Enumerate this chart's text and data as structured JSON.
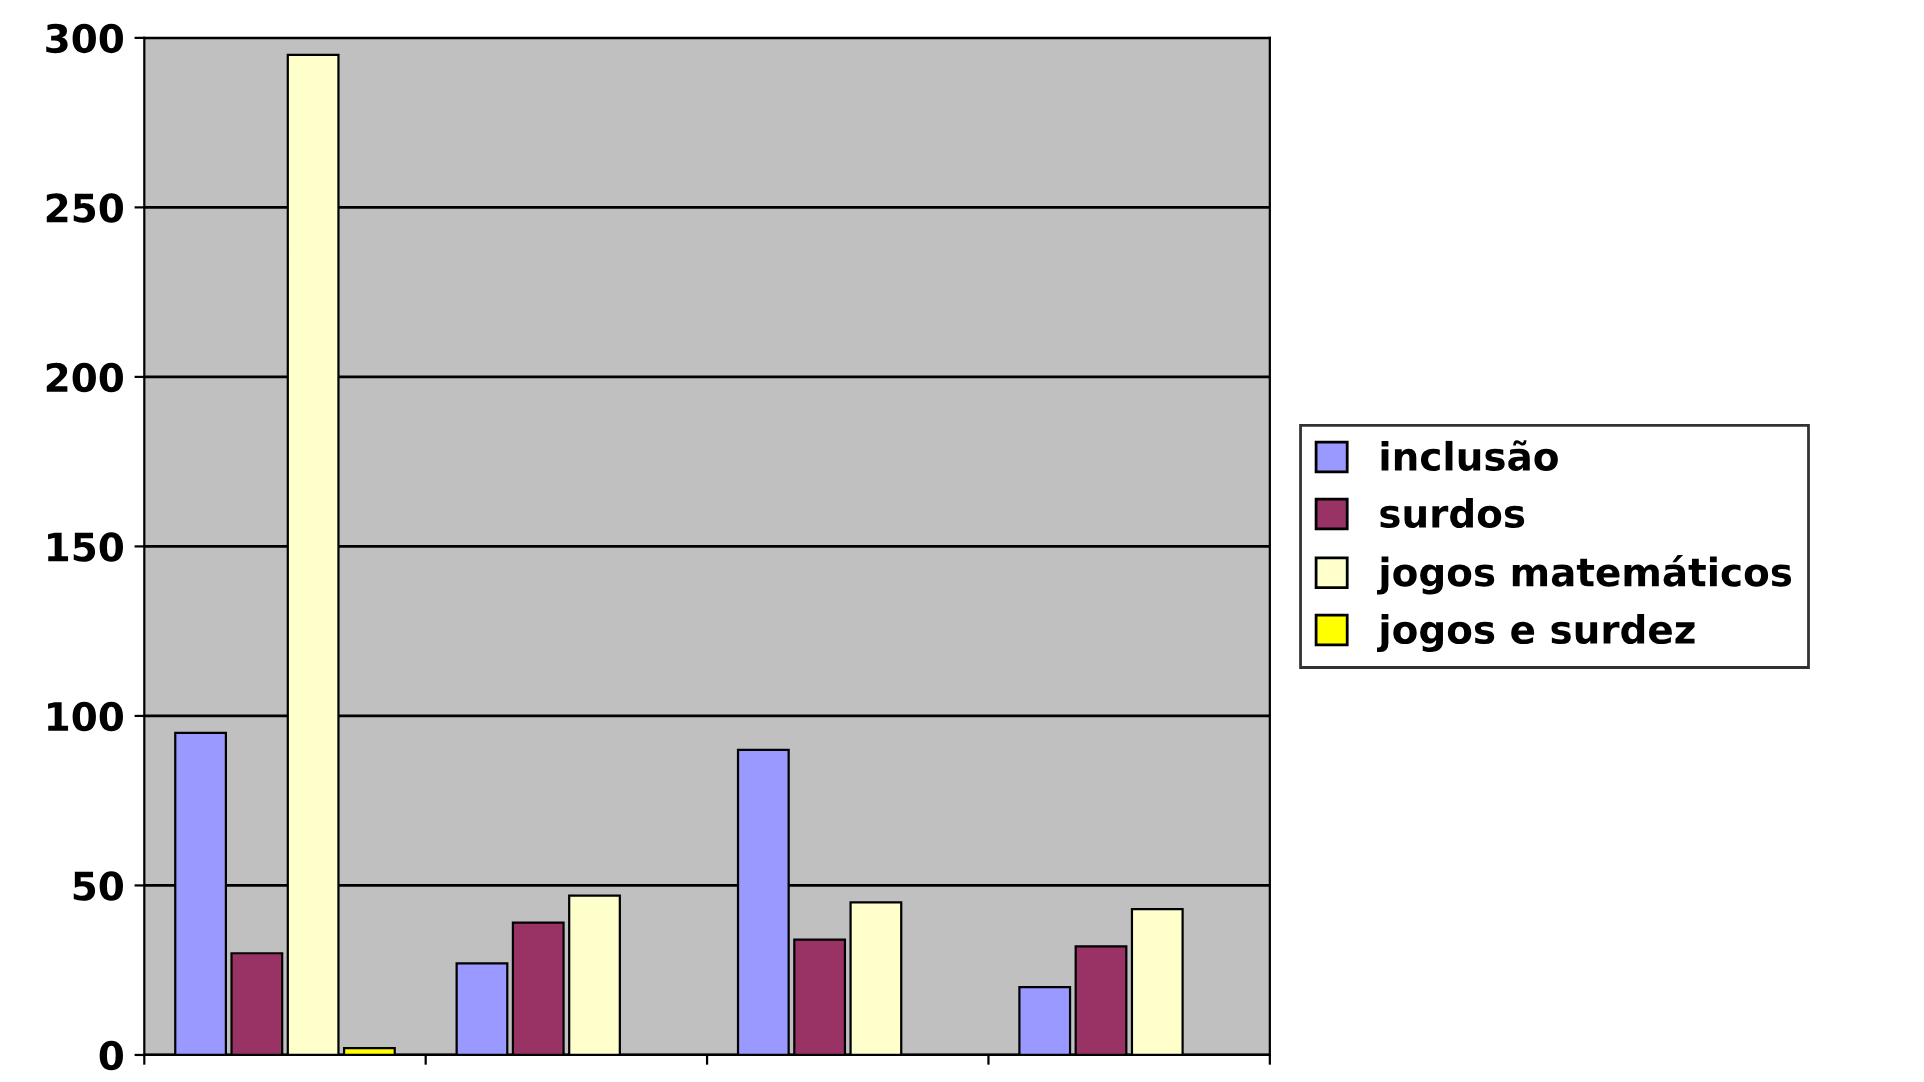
{
  "chart_data": {
    "type": "bar",
    "categories": [
      null,
      null,
      null,
      null
    ],
    "series": [
      {
        "name": "inclusão",
        "color": "#9999ff",
        "values": [
          95,
          27,
          90,
          20
        ]
      },
      {
        "name": "surdos",
        "color": "#993366",
        "values": [
          30,
          39,
          34,
          32
        ]
      },
      {
        "name": "jogos matemáticos",
        "color": "#ffffcc",
        "values": [
          295,
          47,
          45,
          43
        ]
      },
      {
        "name": "jogos e surdez",
        "color": "#ffff00",
        "values": [
          2,
          null,
          null,
          null
        ]
      }
    ],
    "ylim": [
      0,
      300
    ],
    "yticks": [
      0,
      50,
      100,
      150,
      200,
      250,
      300
    ],
    "grid": "y",
    "legend": "right",
    "tick_labels": "y"
  }
}
